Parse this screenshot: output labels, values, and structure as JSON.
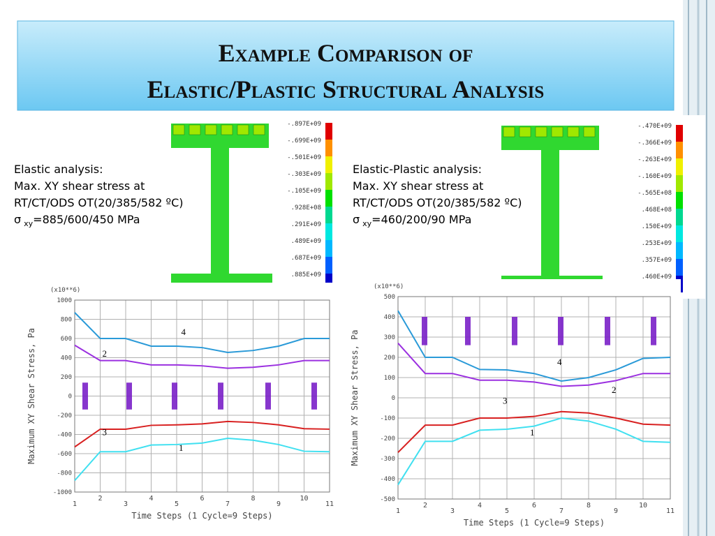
{
  "slide": {
    "title_line1": "Example Comparison of",
    "title_line2": "Elastic/Plastic Structural Analysis",
    "left_text": [
      "Elastic analysis:",
      "Max. XY shear stress at",
      "RT/CT/ODS OT(20/385/582 ºC)"
    ],
    "left_sigma": [
      "σ",
      "xy",
      "=885/600/450 MPa"
    ],
    "right_text": [
      "Elastic-Plastic analysis:",
      "Max. XY shear stress at",
      "RT/CT/ODS OT(20/385/582 ºC)"
    ],
    "right_sigma": [
      "σ",
      "xy",
      "=460/200/90 MPa"
    ],
    "left_colorbar": [
      "-.897E+09",
      "-.699E+09",
      "-.501E+09",
      "-.303E+09",
      "-.105E+09",
      ".928E+08",
      ".291E+09",
      ".489E+09",
      ".687E+09",
      ".885E+09"
    ],
    "right_colorbar": [
      "-.470E+09",
      "-.366E+09",
      "-.263E+09",
      "-.160E+09",
      "-.565E+08",
      ".468E+08",
      ".150E+09",
      ".253E+09",
      ".357E+09",
      ".460E+09"
    ],
    "colorbar_colors": [
      "#0000c8",
      "#0060ff",
      "#00b8ff",
      "#00e8e0",
      "#00d890",
      "#00e000",
      "#a0e800",
      "#f0f000",
      "#ff9000",
      "#e00000"
    ]
  },
  "chart_data": [
    {
      "type": "line",
      "x_label": "Time Steps (1 Cycle=9 Steps)",
      "y_label": "Maximum XY Shear Stress, Pa",
      "multiplier": "(x10**6)",
      "x": [
        1,
        2,
        3,
        4,
        5,
        6,
        7,
        8,
        9,
        10,
        11
      ],
      "xlim": [
        1,
        11
      ],
      "xticks": [
        1,
        2,
        3,
        4,
        5,
        6,
        7,
        8,
        9,
        10,
        11
      ],
      "ylim": [
        -1000,
        1000
      ],
      "yticks": [
        -1000,
        -800,
        -600,
        -400,
        -200,
        0,
        200,
        400,
        600,
        800,
        1000
      ],
      "grid": true,
      "series": [
        {
          "name": "4",
          "color": "#2a9ad8",
          "values": [
            870,
            600,
            600,
            520,
            520,
            505,
            455,
            475,
            520,
            600,
            600
          ]
        },
        {
          "name": "2",
          "color": "#9b30e0",
          "values": [
            530,
            370,
            370,
            325,
            325,
            315,
            290,
            300,
            325,
            370,
            370
          ]
        },
        {
          "name": "3",
          "color": "#d82020",
          "values": [
            -530,
            -345,
            -345,
            -305,
            -300,
            -290,
            -265,
            -275,
            -300,
            -340,
            -345
          ]
        },
        {
          "name": "1",
          "color": "#40e0f0",
          "values": [
            -880,
            -580,
            -580,
            -510,
            -505,
            -490,
            -440,
            -460,
            -505,
            -575,
            -580
          ]
        }
      ]
    },
    {
      "type": "line",
      "x_label": "Time Steps (1 Cycle=9 Steps)",
      "y_label": "Maximum XY Shear Stress, Pa",
      "multiplier": "(x10**6)",
      "x": [
        1,
        2,
        3,
        4,
        5,
        6,
        7,
        8,
        9,
        10,
        11
      ],
      "xlim": [
        1,
        11
      ],
      "xticks": [
        1,
        2,
        3,
        4,
        5,
        6,
        7,
        8,
        9,
        10,
        11
      ],
      "ylim": [
        -500,
        500
      ],
      "yticks": [
        -500,
        -400,
        -300,
        -200,
        -100,
        0,
        100,
        200,
        300,
        400,
        500
      ],
      "grid": true,
      "series": [
        {
          "name": "4",
          "color": "#2a9ad8",
          "values": [
            430,
            200,
            200,
            140,
            138,
            120,
            83,
            100,
            138,
            195,
            200
          ]
        },
        {
          "name": "2",
          "color": "#9b30e0",
          "values": [
            270,
            120,
            120,
            87,
            87,
            78,
            57,
            63,
            85,
            120,
            120
          ]
        },
        {
          "name": "3",
          "color": "#d82020",
          "values": [
            -270,
            -135,
            -135,
            -100,
            -100,
            -92,
            -68,
            -75,
            -100,
            -130,
            -135
          ]
        },
        {
          "name": "1",
          "color": "#40e0f0",
          "values": [
            -430,
            -215,
            -215,
            -160,
            -155,
            -140,
            -100,
            -115,
            -155,
            -215,
            -220
          ]
        }
      ]
    }
  ]
}
